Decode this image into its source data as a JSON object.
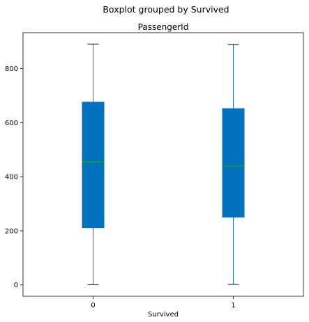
{
  "chart_data": {
    "type": "boxplot",
    "suptitle": "Boxplot grouped by Survived",
    "title": "PassengerId",
    "xlabel": "Survived",
    "ylabel": "",
    "ylim": [
      -42,
      933
    ],
    "yticks": [
      0,
      200,
      400,
      600,
      800
    ],
    "categories": [
      "0",
      "1"
    ],
    "boxes": [
      {
        "category": "0",
        "whisker_low": 1,
        "q1": 211,
        "median": 455,
        "q3": 676,
        "whisker_high": 891
      },
      {
        "category": "1",
        "whisker_low": 2,
        "q1": 251,
        "median": 440,
        "q3": 652,
        "whisker_high": 890
      }
    ],
    "grid": false,
    "colors": {
      "box_fill": "#0072BD",
      "whisker": "#1f77b4",
      "median": "#2ca02c",
      "axis": "#000000"
    }
  }
}
